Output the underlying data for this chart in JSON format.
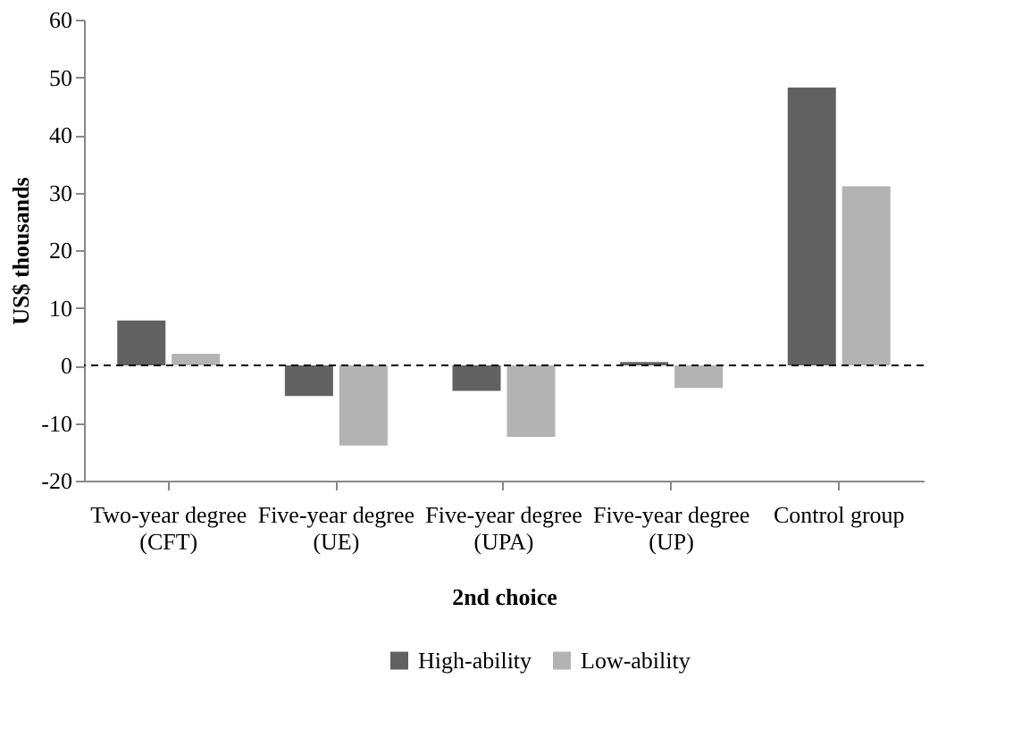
{
  "chart_data": {
    "type": "bar",
    "xlabel": "2nd choice",
    "ylabel": "US$ thousands",
    "categories": [
      "Two-year degree\n(CFT)",
      "Five-year degree\n(UE)",
      "Five-year degree\n(UPA)",
      "Five-year degree\n(UP)",
      "Control group"
    ],
    "series": [
      {
        "name": "High-ability",
        "color": "#616161",
        "values": [
          7.8,
          -5.3,
          -4.4,
          0.6,
          48.2
        ]
      },
      {
        "name": "Low-ability",
        "color": "#b3b3b3",
        "values": [
          2.0,
          -13.9,
          -12.4,
          -3.9,
          31.1
        ]
      }
    ],
    "ylim": [
      -20,
      60
    ],
    "yticks": [
      -20,
      -10,
      0,
      10,
      20,
      30,
      40,
      50,
      60
    ],
    "grid": false,
    "legend": "bottom",
    "ref_lines": [
      {
        "axis": "y",
        "value": 0,
        "line_style": "dashed",
        "color": "#000000"
      }
    ]
  }
}
